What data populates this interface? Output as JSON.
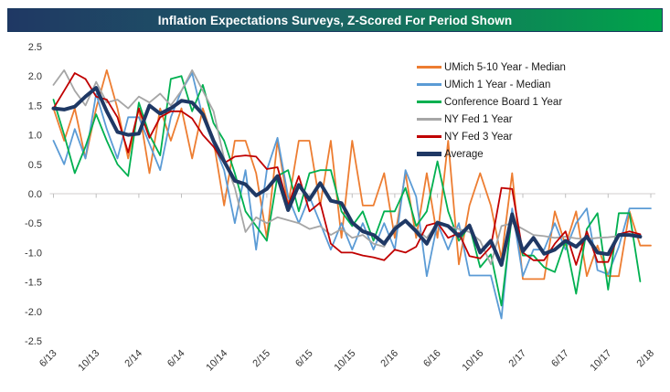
{
  "title": {
    "text": "Inflation Expectations Surveys, Z-Scored For Period Shown"
  },
  "colors": {
    "title_gradient_left": "#1F3864",
    "title_gradient_right": "#00A44A",
    "zero_line": "#D0CECE",
    "tick_text": "#333333"
  },
  "chart_data": {
    "type": "line",
    "title": "Inflation Expectations Surveys, Z-Scored For Period Shown",
    "xlabel": "",
    "ylabel": "",
    "ylim": [
      -2.5,
      2.5
    ],
    "y_tick_step": 0.5,
    "y_tick_labels": [
      "2.5",
      "2.0",
      "1.5",
      "1.0",
      "0.5",
      "0.0",
      "-0.5",
      "-1.0",
      "-1.5",
      "-2.0",
      "-2.5"
    ],
    "grid": "zero-line-only",
    "legend_position": "inside-top-right",
    "x_tick_labels": [
      "6/13",
      "10/13",
      "2/14",
      "6/14",
      "10/14",
      "2/15",
      "6/15",
      "10/15",
      "2/16",
      "6/16",
      "10/16",
      "2/17",
      "6/17",
      "10/17",
      "2/18"
    ],
    "x_tick_indices": [
      0,
      4,
      8,
      12,
      16,
      20,
      24,
      28,
      32,
      36,
      40,
      44,
      48,
      52,
      56
    ],
    "months": [
      "6/13",
      "7/13",
      "8/13",
      "9/13",
      "10/13",
      "11/13",
      "12/13",
      "1/14",
      "2/14",
      "3/14",
      "4/14",
      "5/14",
      "6/14",
      "7/14",
      "8/14",
      "9/14",
      "10/14",
      "11/14",
      "12/14",
      "1/15",
      "2/15",
      "3/15",
      "4/15",
      "5/15",
      "6/15",
      "7/15",
      "8/15",
      "9/15",
      "10/15",
      "11/15",
      "12/15",
      "1/16",
      "2/16",
      "3/16",
      "4/16",
      "5/16",
      "6/16",
      "7/16",
      "8/16",
      "9/16",
      "10/16",
      "11/16",
      "12/16",
      "1/17",
      "2/17",
      "3/17",
      "4/17",
      "5/17",
      "6/17",
      "7/17",
      "8/17",
      "9/17",
      "10/17",
      "11/17",
      "12/17",
      "1/18",
      "2/18"
    ],
    "series": [
      {
        "name": "UMich 5-10 Year - Median",
        "color": "#ED7D31",
        "width": 1.8,
        "values": [
          1.45,
          0.9,
          1.45,
          0.6,
          1.45,
          2.1,
          1.45,
          0.6,
          1.45,
          0.35,
          1.45,
          0.9,
          1.45,
          0.6,
          1.45,
          0.9,
          -0.2,
          0.9,
          0.9,
          0.35,
          -0.75,
          0.9,
          -0.2,
          0.9,
          0.9,
          -0.2,
          0.9,
          -0.75,
          0.9,
          -0.2,
          -0.2,
          0.35,
          -0.75,
          0.35,
          -0.75,
          0.35,
          -0.75,
          0.9,
          -1.2,
          -0.2,
          0.35,
          -0.2,
          -1.1,
          0.35,
          -1.45,
          -1.45,
          -1.45,
          -0.3,
          -0.88,
          -0.3,
          -1.4,
          -0.88,
          -1.4,
          -1.4,
          -0.3,
          -0.88,
          -0.88
        ]
      },
      {
        "name": "UMich 1 Year - Median",
        "color": "#5B9BD5",
        "width": 1.8,
        "values": [
          0.9,
          0.5,
          1.1,
          0.6,
          1.7,
          1.1,
          0.6,
          1.3,
          1.3,
          0.85,
          0.4,
          1.3,
          1.75,
          2.05,
          1.3,
          0.85,
          0.4,
          -0.5,
          0.4,
          -0.95,
          0.4,
          0.95,
          -0.05,
          -0.5,
          -0.05,
          -0.5,
          -0.95,
          -0.5,
          -0.95,
          -0.5,
          -0.95,
          -0.5,
          -0.95,
          0.4,
          -0.05,
          -1.4,
          -0.5,
          -0.95,
          -0.5,
          -1.39,
          -1.39,
          -1.39,
          -2.12,
          -0.25,
          -1.4,
          -0.95,
          -0.95,
          -0.5,
          -0.95,
          -0.5,
          -0.25,
          -1.3,
          -1.37,
          -0.9,
          -0.25,
          -0.25,
          -0.25
        ]
      },
      {
        "name": "Conference Board 1 Year",
        "color": "#00B050",
        "width": 1.8,
        "values": [
          1.6,
          1.0,
          0.35,
          0.8,
          1.35,
          0.9,
          0.5,
          0.3,
          1.55,
          1.0,
          0.65,
          1.95,
          2.0,
          1.4,
          1.85,
          1.2,
          0.9,
          0.35,
          -0.3,
          -0.55,
          -0.8,
          0.3,
          0.4,
          -0.3,
          0.35,
          0.4,
          0.4,
          -0.3,
          -0.55,
          -0.3,
          -0.8,
          -0.3,
          -0.3,
          0.1,
          -0.55,
          -0.3,
          0.55,
          -0.3,
          -0.8,
          -0.55,
          -1.25,
          -1.03,
          -1.9,
          -0.35,
          -1.05,
          -1.05,
          -1.25,
          -1.33,
          -0.8,
          -1.7,
          -0.6,
          -0.33,
          -1.63,
          -0.33,
          -0.33,
          -1.49,
          null
        ]
      },
      {
        "name": "NY Fed 1 Year",
        "color": "#A6A6A6",
        "width": 1.8,
        "values": [
          1.85,
          2.1,
          1.75,
          1.5,
          1.9,
          1.55,
          1.6,
          1.45,
          1.65,
          1.55,
          1.7,
          1.5,
          1.75,
          2.1,
          1.75,
          1.4,
          0.6,
          0.1,
          -0.65,
          -0.4,
          -0.5,
          -0.4,
          -0.45,
          -0.5,
          -0.6,
          -0.55,
          -0.7,
          -0.6,
          -0.75,
          -0.7,
          -0.85,
          -0.9,
          -0.55,
          -0.45,
          -0.6,
          -0.75,
          -0.5,
          -0.55,
          -0.6,
          -0.65,
          -0.8,
          -1.2,
          -0.55,
          -0.5,
          -0.6,
          -0.7,
          -0.72,
          -0.75,
          -0.73,
          -0.76,
          -0.77,
          -0.75,
          -0.74,
          -0.72,
          -0.7,
          -0.69,
          null
        ]
      },
      {
        "name": "NY Fed 3 Year",
        "color": "#C00000",
        "width": 1.8,
        "values": [
          1.45,
          1.75,
          2.05,
          1.95,
          1.65,
          1.6,
          1.3,
          0.7,
          1.45,
          0.95,
          1.3,
          1.4,
          1.4,
          1.28,
          1.0,
          0.8,
          0.52,
          0.63,
          0.65,
          0.63,
          0.42,
          0.45,
          -0.2,
          0.3,
          -0.3,
          -0.15,
          -0.85,
          -1.0,
          -1.0,
          -1.05,
          -1.08,
          -1.13,
          -0.95,
          -1.0,
          -0.9,
          -0.54,
          -0.49,
          -0.75,
          -0.67,
          -1.06,
          -1.1,
          -0.9,
          0.1,
          0.08,
          -1.0,
          -1.13,
          -1.13,
          -0.85,
          -0.64,
          -1.21,
          -0.64,
          -1.16,
          -1.16,
          -0.69,
          -0.64,
          -0.69,
          null
        ]
      },
      {
        "name": "Average",
        "color": "#1F3864",
        "width": 4,
        "values": [
          1.45,
          1.43,
          1.48,
          1.65,
          1.8,
          1.4,
          1.05,
          1.0,
          1.02,
          1.5,
          1.36,
          1.45,
          1.58,
          1.55,
          1.35,
          0.9,
          0.55,
          0.22,
          0.16,
          -0.03,
          0.08,
          0.3,
          -0.28,
          0.15,
          -0.1,
          0.18,
          -0.12,
          -0.16,
          -0.49,
          -0.64,
          -0.7,
          -0.85,
          -0.6,
          -0.46,
          -0.64,
          -0.85,
          -0.49,
          -0.55,
          -0.72,
          -0.54,
          -1.0,
          -0.8,
          -1.21,
          -0.35,
          -0.98,
          -0.75,
          -1.02,
          -0.95,
          -0.8,
          -0.9,
          -0.73,
          -1.0,
          -1.03,
          -0.7,
          -0.7,
          -0.73,
          null
        ]
      }
    ]
  }
}
